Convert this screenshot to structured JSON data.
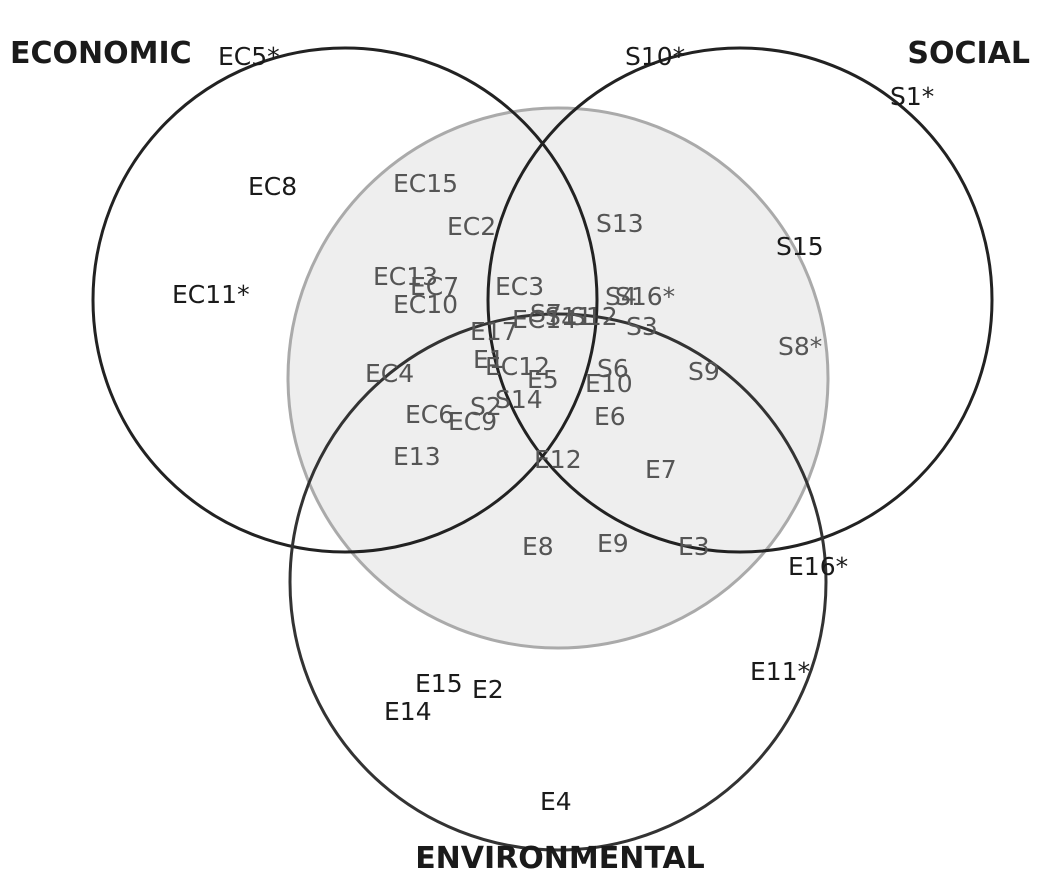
{
  "sets": [
    {
      "label": "ECONOMIC"
    },
    {
      "label": "SOCIAL"
    },
    {
      "label": "ENVIRONMENTAL"
    }
  ],
  "items": [
    "EC5*",
    "S10*",
    "S1*",
    "EC8",
    "EC15",
    "EC2",
    "S13",
    "S15",
    "EC11*",
    "EC13",
    "EC7",
    "EC10",
    "EC3",
    "S4",
    "S16*",
    "EC14",
    "S7",
    "S11",
    "S12",
    "E17",
    "S3",
    "S8*",
    "E1",
    "EC12",
    "E5",
    "S6",
    "E10",
    "S9",
    "EC4",
    "EC6",
    "EC9",
    "S2",
    "S14",
    "E6",
    "E13",
    "E12",
    "E7",
    "E8",
    "E9",
    "E3",
    "E16*",
    "E15",
    "E2",
    "E14",
    "E11*",
    "E4"
  ]
}
